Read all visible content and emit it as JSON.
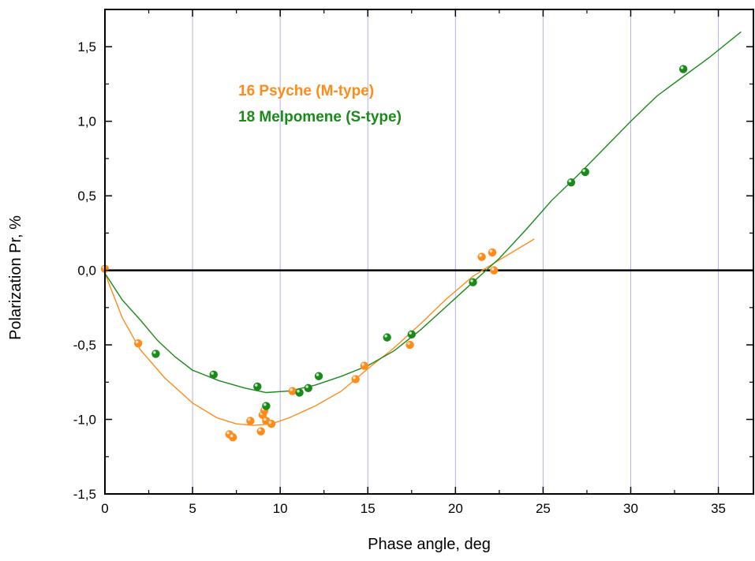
{
  "chart_data": {
    "type": "scatter",
    "xlabel": "Phase angle, deg",
    "ylabel": "Polarization Pr, %",
    "xlim": [
      0,
      37
    ],
    "ylim": [
      -1.5,
      1.75
    ],
    "x_ticks": [
      0,
      5,
      10,
      15,
      20,
      25,
      30,
      35
    ],
    "x_tick_labels": [
      "0",
      "5",
      "10",
      "15",
      "20",
      "25",
      "30",
      "35"
    ],
    "y_ticks": [
      -1.5,
      -1.0,
      -0.5,
      0.0,
      0.5,
      1.0,
      1.5
    ],
    "y_tick_labels": [
      "-1,5",
      "-1,0",
      "-0,5",
      "0,0",
      "0,5",
      "1,0",
      "1,5"
    ],
    "vertical_grid": true,
    "zero_line": true,
    "legend_position": "upper-left",
    "series": [
      {
        "name": "16 Psyche (M-type)",
        "color": "#ff8c1a",
        "points": [
          [
            0.0,
            0.01
          ],
          [
            1.9,
            -0.49
          ],
          [
            7.1,
            -1.1
          ],
          [
            7.3,
            -1.12
          ],
          [
            8.3,
            -1.01
          ],
          [
            8.9,
            -1.08
          ],
          [
            9.0,
            -0.97
          ],
          [
            9.1,
            -0.94
          ],
          [
            9.2,
            -1.01
          ],
          [
            9.5,
            -1.03
          ],
          [
            10.7,
            -0.81
          ],
          [
            14.3,
            -0.73
          ],
          [
            14.8,
            -0.64
          ],
          [
            17.4,
            -0.5
          ],
          [
            21.5,
            0.09
          ],
          [
            22.1,
            0.12
          ],
          [
            22.2,
            0.0
          ]
        ],
        "fit": [
          [
            0.0,
            -0.02
          ],
          [
            1.0,
            -0.32
          ],
          [
            2.0,
            -0.53
          ],
          [
            3.4,
            -0.72
          ],
          [
            5.0,
            -0.89
          ],
          [
            6.4,
            -0.99
          ],
          [
            7.5,
            -1.03
          ],
          [
            8.5,
            -1.04
          ],
          [
            9.5,
            -1.03
          ],
          [
            10.5,
            -0.99
          ],
          [
            12.0,
            -0.91
          ],
          [
            13.5,
            -0.81
          ],
          [
            15.0,
            -0.66
          ],
          [
            16.5,
            -0.52
          ],
          [
            18.0,
            -0.36
          ],
          [
            19.5,
            -0.19
          ],
          [
            21.0,
            -0.04
          ],
          [
            22.5,
            0.07
          ],
          [
            24.5,
            0.21
          ]
        ]
      },
      {
        "name": "18 Melpomene (S-type)",
        "color": "#1a8a1a",
        "points": [
          [
            2.9,
            -0.56
          ],
          [
            6.2,
            -0.7
          ],
          [
            8.7,
            -0.78
          ],
          [
            9.2,
            -0.91
          ],
          [
            11.1,
            -0.82
          ],
          [
            11.6,
            -0.79
          ],
          [
            12.2,
            -0.71
          ],
          [
            16.1,
            -0.45
          ],
          [
            17.5,
            -0.43
          ],
          [
            21.0,
            -0.08
          ],
          [
            26.6,
            0.59
          ],
          [
            27.4,
            0.66
          ],
          [
            33.0,
            1.35
          ]
        ],
        "fit": [
          [
            0.0,
            -0.02
          ],
          [
            1.0,
            -0.2
          ],
          [
            2.0,
            -0.33
          ],
          [
            3.0,
            -0.47
          ],
          [
            4.0,
            -0.58
          ],
          [
            5.0,
            -0.67
          ],
          [
            6.5,
            -0.74
          ],
          [
            8.0,
            -0.79
          ],
          [
            9.2,
            -0.82
          ],
          [
            10.5,
            -0.81
          ],
          [
            12.0,
            -0.77
          ],
          [
            13.5,
            -0.71
          ],
          [
            15.0,
            -0.64
          ],
          [
            16.5,
            -0.54
          ],
          [
            18.0,
            -0.4
          ],
          [
            19.5,
            -0.24
          ],
          [
            21.0,
            -0.08
          ],
          [
            22.5,
            0.08
          ],
          [
            24.0,
            0.27
          ],
          [
            25.5,
            0.47
          ],
          [
            27.0,
            0.64
          ],
          [
            28.5,
            0.82
          ],
          [
            30.0,
            1.0
          ],
          [
            31.5,
            1.17
          ],
          [
            33.0,
            1.3
          ],
          [
            34.5,
            1.43
          ],
          [
            36.3,
            1.6
          ]
        ]
      }
    ]
  }
}
